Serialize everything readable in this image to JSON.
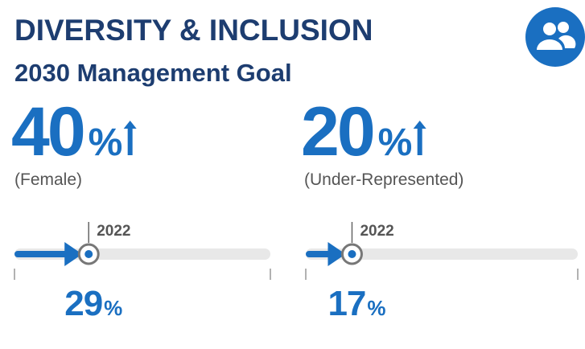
{
  "header": {
    "title": "DIVERSITY & INCLUSION",
    "subtitle": "2030 Management Goal"
  },
  "goals": [
    {
      "goal": 40,
      "unit": "%",
      "label": "(Female)",
      "year": "2022",
      "current": 29,
      "xlim": [
        0,
        100
      ]
    },
    {
      "goal": 20,
      "unit": "%",
      "label": "(Under-Represented)",
      "year": "2022",
      "current": 17,
      "xlim": [
        0,
        100
      ]
    }
  ]
}
